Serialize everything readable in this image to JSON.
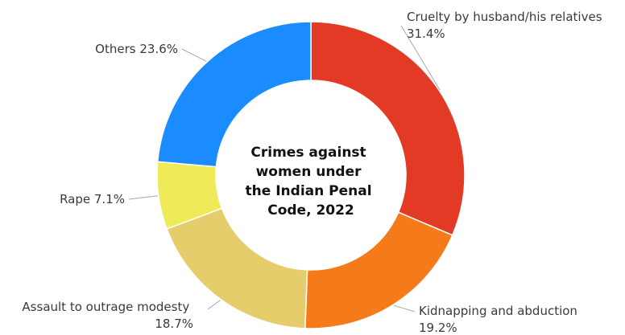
{
  "chart_data": {
    "type": "pie",
    "donut": true,
    "title_lines": [
      "Crimes against",
      "women under",
      "the Indian Penal",
      "Code, 2022"
    ],
    "slices": [
      {
        "label": "Cruelty by husband/his relatives",
        "value": 31.4,
        "value_text": "31.4%",
        "color": "#e33a25"
      },
      {
        "label": "Kidnapping and abduction",
        "value": 19.2,
        "value_text": "19.2%",
        "color": "#f47a1a"
      },
      {
        "label": "Assault to outrage modesty",
        "value": 18.7,
        "value_text": "18.7%",
        "color": "#e6cd6b"
      },
      {
        "label": "Rape",
        "value": 7.1,
        "value_text": "7.1%",
        "color": "#eeea58"
      },
      {
        "label": "Others",
        "value": 23.6,
        "value_text": "23.6%",
        "color": "#1a8cff"
      }
    ],
    "start_angle_deg": 0,
    "direction": "clockwise",
    "legend": "none"
  }
}
